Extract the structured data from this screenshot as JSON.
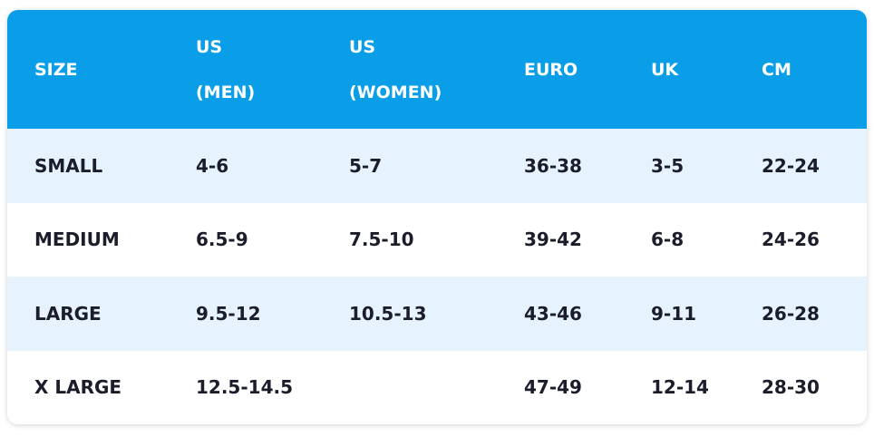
{
  "table": {
    "header": [
      [
        "SIZE"
      ],
      [
        "US",
        "(MEN)"
      ],
      [
        "US",
        "(WOMEN)"
      ],
      [
        "EURO"
      ],
      [
        "UK"
      ],
      [
        "CM"
      ]
    ],
    "rows": [
      [
        "SMALL",
        "4-6",
        "5-7",
        "36-38",
        "3-5",
        "22-24"
      ],
      [
        "MEDIUM",
        "6.5-9",
        "7.5-10",
        "39-42",
        "6-8",
        "24-26"
      ],
      [
        "LARGE",
        "9.5-12",
        "10.5-13",
        "43-46",
        "9-11",
        "26-28"
      ],
      [
        "X LARGE",
        "12.5-14.5",
        null,
        "47-49",
        "12-14",
        "28-30"
      ]
    ]
  }
}
